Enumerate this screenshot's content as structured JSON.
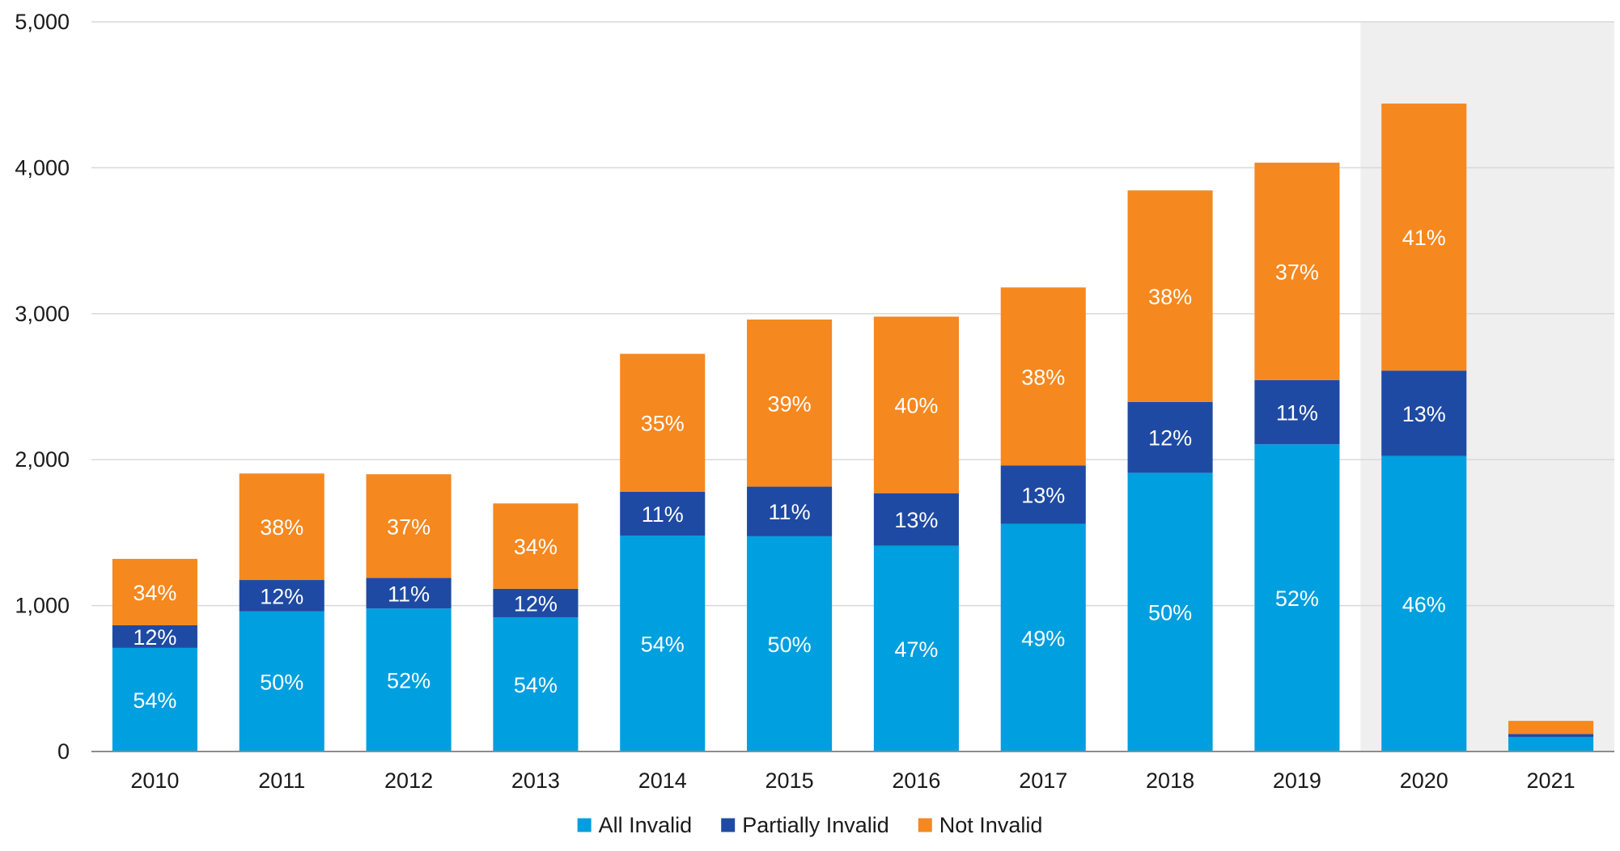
{
  "chart_data": {
    "type": "bar",
    "stacked": true,
    "title": "",
    "xlabel": "",
    "ylabel": "",
    "categories": [
      "2010",
      "2011",
      "2012",
      "2013",
      "2014",
      "2015",
      "2016",
      "2017",
      "2018",
      "2019",
      "2020",
      "2021"
    ],
    "ylim": [
      0,
      5000
    ],
    "yticks": [
      0,
      1000,
      2000,
      3000,
      4000,
      5000
    ],
    "ytick_labels": [
      "0",
      "1,000",
      "2,000",
      "3,000",
      "4,000",
      "5,000"
    ],
    "grid": true,
    "legend_position": "bottom",
    "highlighted_category": "2020",
    "highlight_color": "#efefef",
    "series": [
      {
        "name": "All Invalid",
        "color": "#009fdf",
        "values": [
          710,
          960,
          980,
          920,
          1480,
          1475,
          1410,
          1560,
          1910,
          2105,
          2025,
          100
        ],
        "labels": [
          "54%",
          "50%",
          "52%",
          "54%",
          "54%",
          "50%",
          "47%",
          "49%",
          "50%",
          "52%",
          "46%",
          ""
        ]
      },
      {
        "name": "Partially Invalid",
        "color": "#1f4aa3",
        "values": [
          155,
          215,
          210,
          195,
          300,
          340,
          360,
          400,
          485,
          440,
          585,
          20
        ],
        "labels": [
          "12%",
          "12%",
          "11%",
          "12%",
          "11%",
          "11%",
          "13%",
          "13%",
          "12%",
          "11%",
          "13%",
          ""
        ]
      },
      {
        "name": "Not Invalid",
        "color": "#f5881f",
        "values": [
          455,
          730,
          710,
          585,
          945,
          1145,
          1210,
          1220,
          1450,
          1490,
          1830,
          90
        ],
        "labels": [
          "34%",
          "38%",
          "37%",
          "34%",
          "35%",
          "39%",
          "40%",
          "38%",
          "38%",
          "37%",
          "41%",
          ""
        ]
      }
    ]
  }
}
